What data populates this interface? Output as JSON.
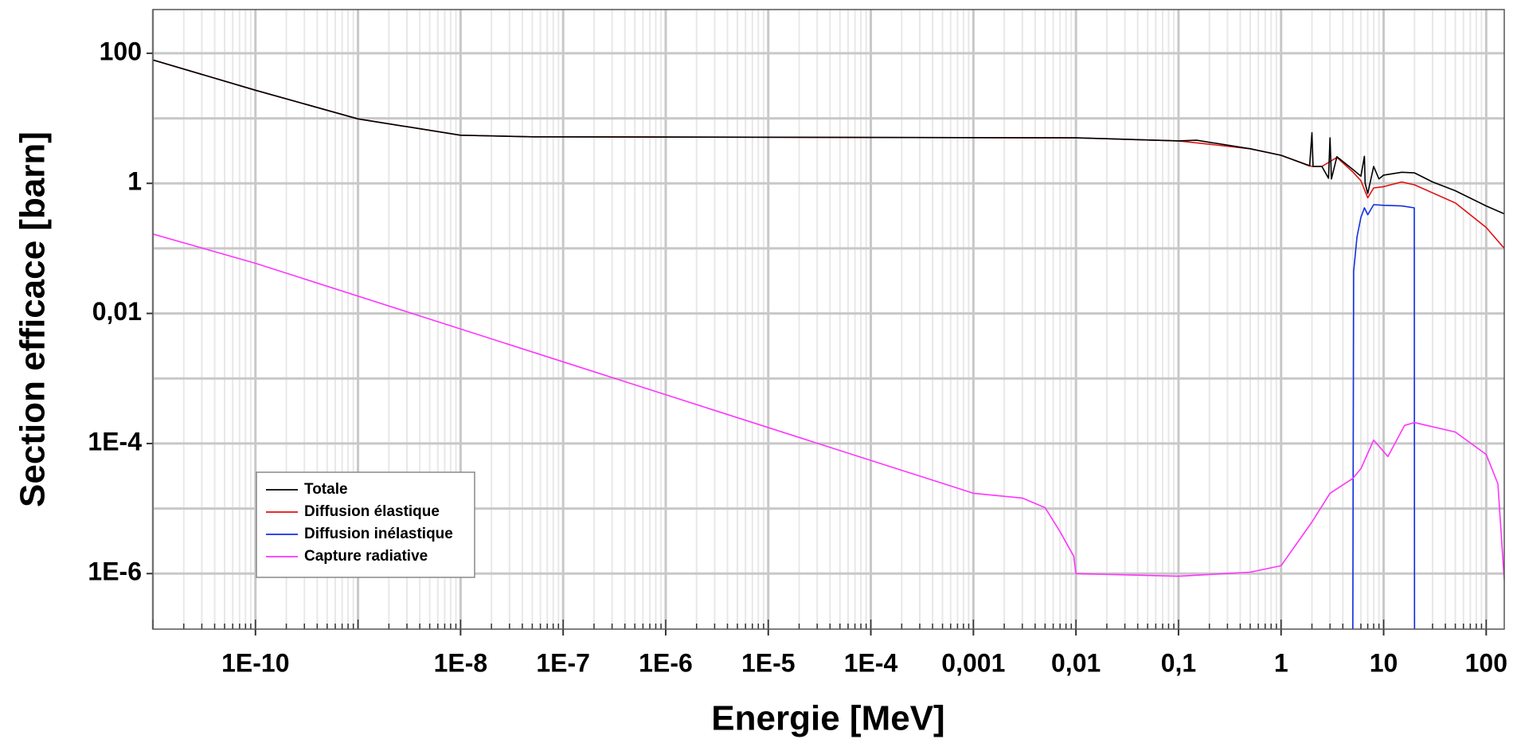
{
  "chart_data": {
    "type": "line",
    "xlabel": "Energie [MeV]",
    "ylabel": "Section efficace [barn]",
    "xscale": "log",
    "yscale": "log",
    "grid": true,
    "legend": "lower left",
    "xlim": [
      1e-11,
      150
    ],
    "ylim": [
      1.4e-07,
      470
    ],
    "xticks": [
      {
        "value": 1e-10,
        "label": "1E-10"
      },
      {
        "value": 1e-08,
        "label": "1E-8"
      },
      {
        "value": 1e-07,
        "label": "1E-7"
      },
      {
        "value": 1e-06,
        "label": "1E-6"
      },
      {
        "value": 1e-05,
        "label": "1E-5"
      },
      {
        "value": 0.0001,
        "label": "1E-4"
      },
      {
        "value": 0.001,
        "label": "0,001"
      },
      {
        "value": 0.01,
        "label": "0,01"
      },
      {
        "value": 0.1,
        "label": "0,1"
      },
      1,
      10,
      100
    ],
    "yticks": [
      {
        "value": 1e-06,
        "label": "1E-6"
      },
      {
        "value": 0.0001,
        "label": "1E-4"
      },
      {
        "value": 0.01,
        "label": "0,01"
      },
      1,
      100
    ],
    "series": [
      {
        "name": "Diffusion élastique",
        "color": "#e01010",
        "x": [
          1e-11,
          1e-10,
          1e-09,
          1e-08,
          5e-08,
          0.01,
          0.1,
          0.5,
          1,
          2,
          2.5,
          3.5,
          5,
          6,
          7,
          8,
          10,
          15,
          20,
          50,
          100,
          150
        ],
        "values": [
          79,
          27,
          9.8,
          5.5,
          5.2,
          5.0,
          4.5,
          3.4,
          2.7,
          1.82,
          1.82,
          2.5,
          1.5,
          1.1,
          0.6,
          0.85,
          0.89,
          1.05,
          0.95,
          0.5,
          0.21,
          0.1
        ]
      },
      {
        "name": "Totale",
        "color": "#000000",
        "x": [
          1e-11,
          1e-10,
          1e-09,
          1e-08,
          5e-08,
          0.01,
          0.1,
          0.15,
          0.5,
          1,
          1.9,
          2,
          2.05,
          2.5,
          2.9,
          3,
          3.1,
          3.5,
          5,
          6,
          6.5,
          6.6,
          7,
          8,
          9,
          10,
          15,
          20,
          30,
          50,
          100,
          150
        ],
        "values": [
          79,
          27,
          9.8,
          5.5,
          5.2,
          5.0,
          4.5,
          4.6,
          3.4,
          2.7,
          1.85,
          6.0,
          1.82,
          1.82,
          1.2,
          5.0,
          1.17,
          2.57,
          1.64,
          1.29,
          2.6,
          1.0,
          0.7,
          1.82,
          1.17,
          1.34,
          1.48,
          1.45,
          1.05,
          0.77,
          0.45,
          0.34
        ]
      },
      {
        "name": "Diffusion inélastique",
        "color": "#1030e0",
        "x": [
          5,
          5.1,
          5.5,
          6,
          6.5,
          7,
          8,
          10,
          15,
          19.9,
          20,
          150
        ],
        "values": [
          1e-07,
          0.045,
          0.15,
          0.3,
          0.42,
          0.33,
          0.47,
          0.46,
          0.45,
          0.42,
          1e-07,
          1e-07
        ]
      },
      {
        "name": "Capture radiative",
        "color": "#ff33ff",
        "x": [
          1e-11,
          1e-10,
          0.001,
          0.003,
          0.005,
          0.007,
          0.0095,
          0.01,
          0.1,
          0.5,
          1,
          2,
          3,
          5,
          6,
          8,
          11,
          16,
          20,
          50,
          100,
          130,
          150
        ],
        "values": [
          0.166,
          0.059,
          1.72e-05,
          1.45e-05,
          1.03e-05,
          4.4e-06,
          1.86e-06,
          1e-06,
          9.1e-07,
          1.05e-06,
          1.32e-06,
          6.2e-06,
          1.72e-05,
          2.9e-05,
          4.1e-05,
          0.000113,
          6.3e-05,
          0.00019,
          0.00021,
          0.00015,
          6.8e-05,
          2.4e-05,
          8e-07
        ]
      }
    ]
  }
}
